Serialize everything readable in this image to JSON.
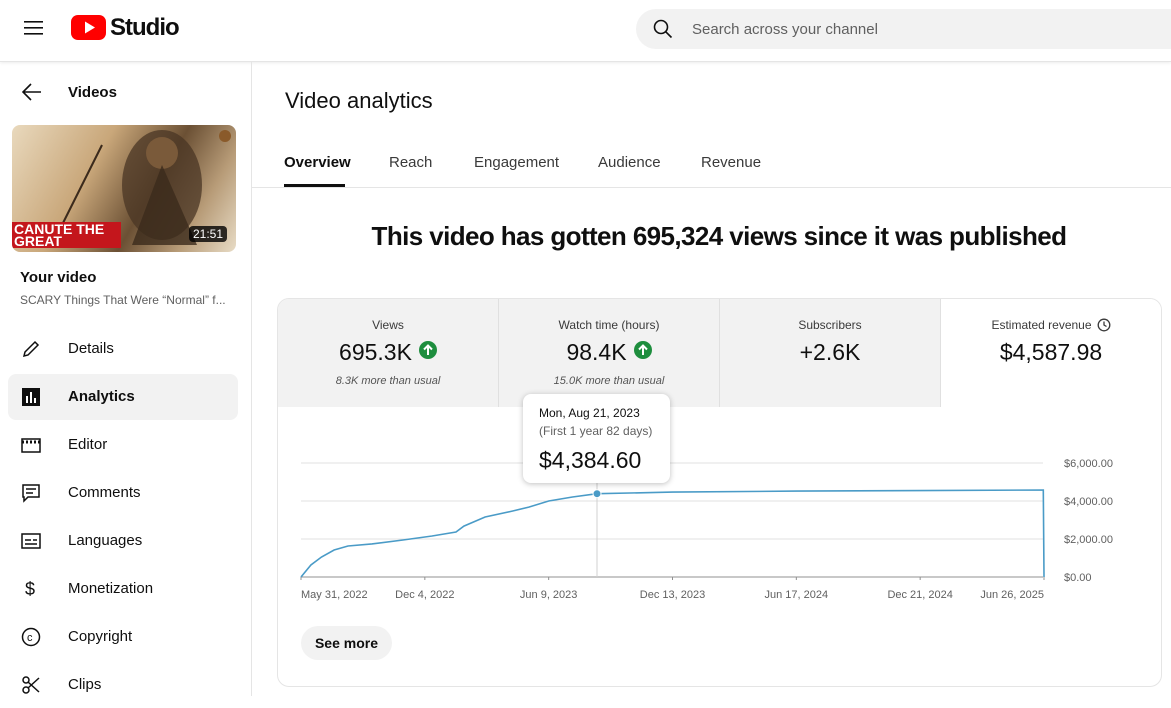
{
  "header": {
    "logo": "Studio",
    "search_placeholder": "Search across your channel"
  },
  "sidebar": {
    "back": "Videos",
    "thumbnail_text": "CANUTE THE GREAT",
    "duration": "21:51",
    "your_video": "Your video",
    "video_title": "SCARY Things That Were “Normal” f...",
    "nav": [
      "Details",
      "Analytics",
      "Editor",
      "Comments",
      "Languages",
      "Monetization",
      "Copyright",
      "Clips"
    ],
    "active_nav": 1
  },
  "main": {
    "title": "Video analytics",
    "tabs": [
      "Overview",
      "Reach",
      "Engagement",
      "Audience",
      "Revenue"
    ],
    "active_tab": 0,
    "headline": "This video has gotten 695,324 views since it was published",
    "metrics": [
      {
        "label": "Views",
        "value": "695.3K",
        "trend": "up",
        "note": "8.3K more than usual"
      },
      {
        "label": "Watch time (hours)",
        "value": "98.4K",
        "trend": "up",
        "note": "15.0K more than usual"
      },
      {
        "label": "Subscribers",
        "value": "+2.6K"
      },
      {
        "label": "Estimated revenue",
        "value": "$4,587.98",
        "info": true
      }
    ],
    "selected_metric": 3,
    "see_more": "See more"
  },
  "chart_data": {
    "type": "line",
    "color": "#4a9bc7",
    "x": [
      "2022-05-31",
      "2022-06-15",
      "2022-07-01",
      "2022-07-20",
      "2022-08-10",
      "2022-09-15",
      "2022-11-01",
      "2022-12-15",
      "2023-01-20",
      "2023-02-01",
      "2023-03-05",
      "2023-04-15",
      "2023-05-10",
      "2023-06-09",
      "2023-07-15",
      "2023-08-21",
      "2023-12-13",
      "2024-06-17",
      "2024-12-21",
      "2025-06-25",
      "2025-06-26"
    ],
    "values": [
      0,
      630,
      1050,
      1420,
      1630,
      1740,
      1950,
      2160,
      2370,
      2680,
      3160,
      3470,
      3680,
      4000,
      4210,
      4384.6,
      4470,
      4520,
      4550,
      4580,
      0
    ],
    "xlim": [
      "2022-05-31",
      "2025-06-26"
    ],
    "xticks": [
      {
        "value": "2022-05-31",
        "label": "May 31, 2022"
      },
      {
        "value": "2022-12-04",
        "label": "Dec 4, 2022"
      },
      {
        "value": "2023-06-09",
        "label": "Jun 9, 2023"
      },
      {
        "value": "2023-12-13",
        "label": "Dec 13, 2023"
      },
      {
        "value": "2024-06-17",
        "label": "Jun 17, 2024"
      },
      {
        "value": "2024-12-21",
        "label": "Dec 21, 2024"
      },
      {
        "value": "2025-06-26",
        "label": "Jun 26, 2025"
      }
    ],
    "ylim": [
      0,
      6000
    ],
    "yticks": [
      {
        "value": 0,
        "label": "$0.00"
      },
      {
        "value": 2000,
        "label": "$2,000.00"
      },
      {
        "value": 4000,
        "label": "$4,000.00"
      },
      {
        "value": 6000,
        "label": "$6,000.00"
      }
    ],
    "grid": true,
    "tooltip": {
      "index": 15,
      "date": "Mon, Aug 21, 2023",
      "note": "(First 1 year 82 days)",
      "value_label": "$4,384.60"
    }
  }
}
